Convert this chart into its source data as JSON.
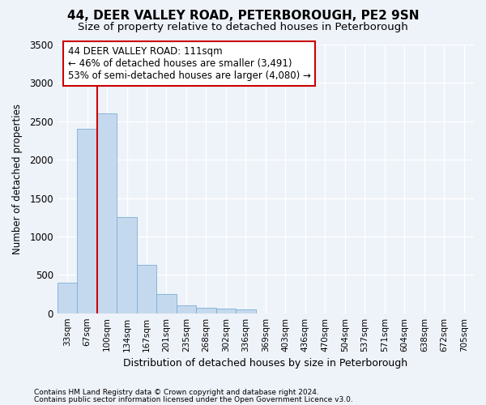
{
  "title": "44, DEER VALLEY ROAD, PETERBOROUGH, PE2 9SN",
  "subtitle": "Size of property relative to detached houses in Peterborough",
  "xlabel": "Distribution of detached houses by size in Peterborough",
  "ylabel": "Number of detached properties",
  "footer_line1": "Contains HM Land Registry data © Crown copyright and database right 2024.",
  "footer_line2": "Contains public sector information licensed under the Open Government Licence v3.0.",
  "categories": [
    "33sqm",
    "67sqm",
    "100sqm",
    "134sqm",
    "167sqm",
    "201sqm",
    "235sqm",
    "268sqm",
    "302sqm",
    "336sqm",
    "369sqm",
    "403sqm",
    "436sqm",
    "470sqm",
    "504sqm",
    "537sqm",
    "571sqm",
    "604sqm",
    "638sqm",
    "672sqm",
    "705sqm"
  ],
  "values": [
    400,
    2400,
    2600,
    1250,
    625,
    250,
    100,
    75,
    65,
    50,
    0,
    0,
    0,
    0,
    0,
    0,
    0,
    0,
    0,
    0,
    0
  ],
  "bar_color": "#c5d9ee",
  "bar_edge_color": "#7aafd4",
  "red_line_index": 2,
  "annotation_text": "44 DEER VALLEY ROAD: 111sqm\n← 46% of detached houses are smaller (3,491)\n53% of semi-detached houses are larger (4,080) →",
  "annotation_box_color": "#ffffff",
  "annotation_box_edge_color": "#cc0000",
  "red_line_color": "#cc0000",
  "ylim": [
    0,
    3500
  ],
  "yticks": [
    0,
    500,
    1000,
    1500,
    2000,
    2500,
    3000,
    3500
  ],
  "background_color": "#eef2f9",
  "grid_color": "#ffffff",
  "title_fontsize": 11,
  "subtitle_fontsize": 9.5,
  "annotation_fontsize": 8.5
}
